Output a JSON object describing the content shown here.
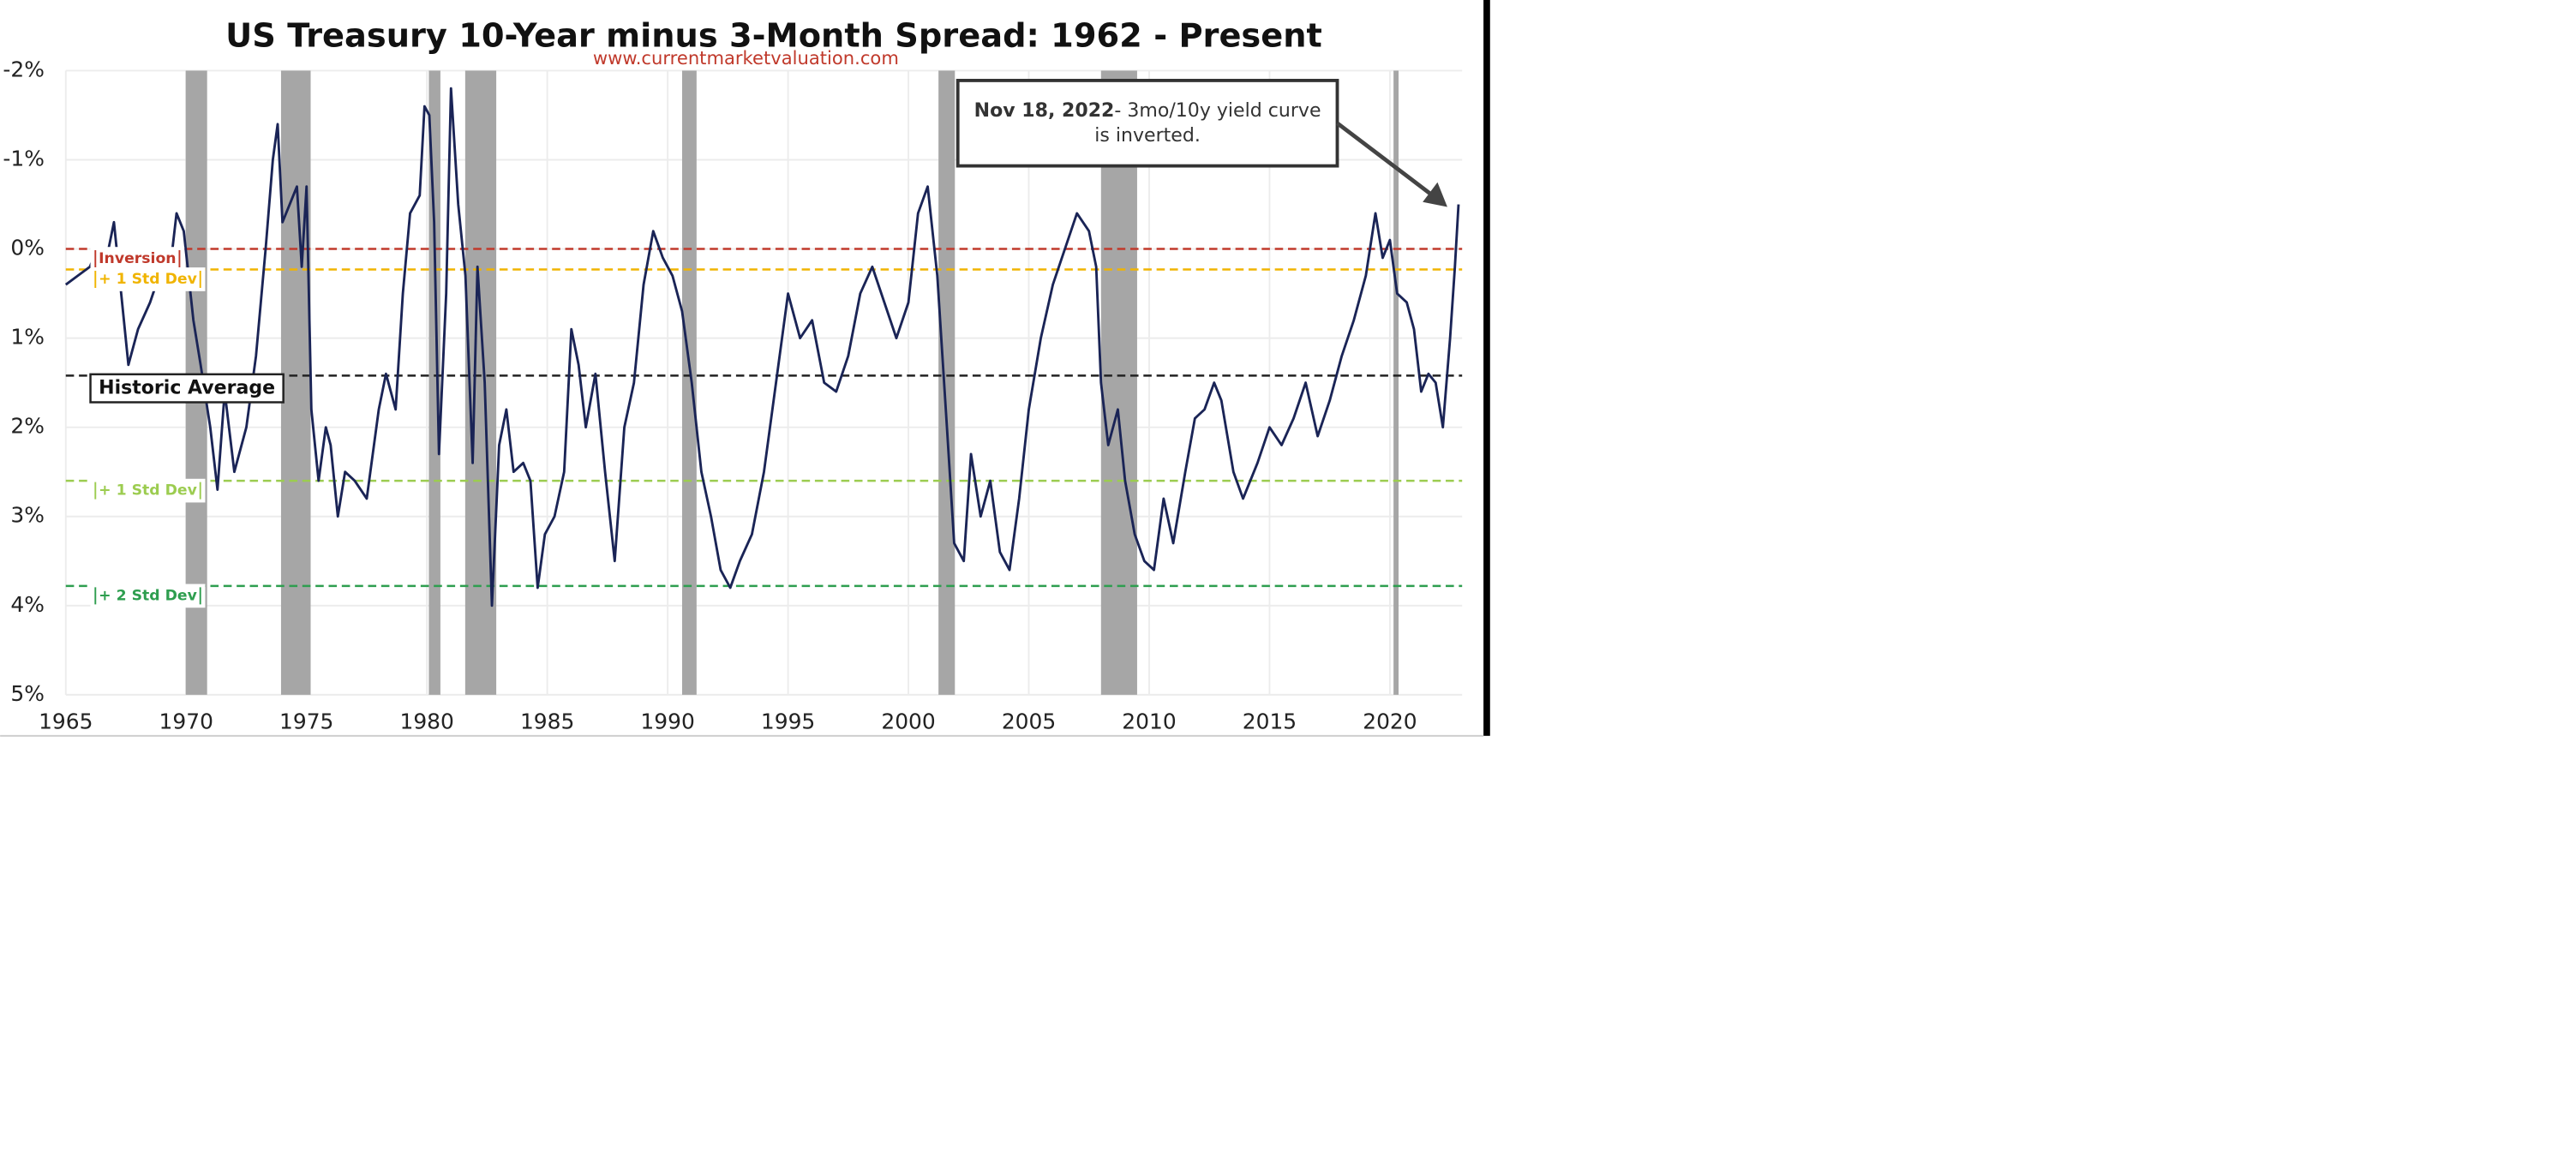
{
  "chart_data": {
    "type": "line",
    "title": "US Treasury 10-Year minus 3-Month Spread: 1962 - Present",
    "subtitle": "www.currentmarketvaluation.com",
    "inverted_y": true,
    "xlim": [
      1965,
      2023
    ],
    "xticks": [
      1965,
      1970,
      1975,
      1980,
      1985,
      1990,
      1995,
      2000,
      2005,
      2010,
      2015,
      2020
    ],
    "ylim": [
      -2,
      5
    ],
    "yticks": [
      {
        "value": -2,
        "label": "-2%"
      },
      {
        "value": -1,
        "label": "-1%"
      },
      {
        "value": 0,
        "label": "0%"
      },
      {
        "value": 1,
        "label": "1%"
      },
      {
        "value": 2,
        "label": "2%"
      },
      {
        "value": 3,
        "label": "3%"
      },
      {
        "value": 4,
        "label": "4%"
      },
      {
        "value": 5,
        "label": "5%"
      }
    ],
    "grid": true,
    "recession_color": "#a6a6a6",
    "recessions": [
      [
        1969.98,
        1970.87
      ],
      [
        1973.94,
        1975.17
      ],
      [
        1980.08,
        1980.56
      ],
      [
        1981.59,
        1982.88
      ],
      [
        1990.6,
        1991.2
      ],
      [
        2001.25,
        2001.93
      ],
      [
        2008.0,
        2009.5
      ],
      [
        2020.15,
        2020.36
      ]
    ],
    "reference_lines": [
      {
        "label": "Inversion",
        "value": 0,
        "color": "#c0392b"
      },
      {
        "label": "+ 1 Std Dev",
        "value": 0.23,
        "color": "#f0b400"
      },
      {
        "label": "Historic Average",
        "value": 1.42,
        "color": "#222222"
      },
      {
        "label": "+ 1 Std Dev",
        "value": 2.6,
        "color": "#9ccc50"
      },
      {
        "label": "+ 2 Std Dev",
        "value": 3.78,
        "color": "#2e9e4f"
      }
    ],
    "annotation": {
      "date": "Nov 18, 2022",
      "text": "- 3mo/10y yield curve is inverted."
    },
    "series": [
      {
        "color": "#1a2456",
        "x": [
          1965.0,
          1965.5,
          1966.0,
          1966.3,
          1966.7,
          1967.0,
          1967.3,
          1967.6,
          1968.0,
          1968.5,
          1969.0,
          1969.3,
          1969.6,
          1969.9,
          1970.3,
          1970.6,
          1971.0,
          1971.3,
          1971.6,
          1972.0,
          1972.5,
          1972.9,
          1973.3,
          1973.6,
          1973.8,
          1974.0,
          1974.3,
          1974.6,
          1974.8,
          1975.0,
          1975.2,
          1975.5,
          1975.8,
          1976.0,
          1976.3,
          1976.6,
          1977.0,
          1977.5,
          1978.0,
          1978.3,
          1978.7,
          1979.0,
          1979.3,
          1979.7,
          1979.9,
          1980.1,
          1980.3,
          1980.5,
          1980.8,
          1981.0,
          1981.3,
          1981.6,
          1981.9,
          1982.1,
          1982.4,
          1982.7,
          1983.0,
          1983.3,
          1983.6,
          1984.0,
          1984.3,
          1984.6,
          1984.9,
          1985.3,
          1985.7,
          1986.0,
          1986.3,
          1986.6,
          1987.0,
          1987.4,
          1987.8,
          1988.2,
          1988.6,
          1989.0,
          1989.4,
          1989.8,
          1990.2,
          1990.6,
          1991.0,
          1991.4,
          1991.8,
          1992.2,
          1992.6,
          1993.0,
          1993.5,
          1994.0,
          1994.5,
          1995.0,
          1995.5,
          1996.0,
          1996.5,
          1997.0,
          1997.5,
          1998.0,
          1998.5,
          1999.0,
          1999.5,
          2000.0,
          2000.4,
          2000.8,
          2001.2,
          2001.6,
          2001.9,
          2002.3,
          2002.6,
          2003.0,
          2003.4,
          2003.8,
          2004.2,
          2004.6,
          2005.0,
          2005.5,
          2006.0,
          2006.5,
          2007.0,
          2007.5,
          2007.8,
          2008.0,
          2008.3,
          2008.7,
          2009.0,
          2009.4,
          2009.8,
          2010.2,
          2010.6,
          2011.0,
          2011.5,
          2011.9,
          2012.3,
          2012.7,
          2013.0,
          2013.5,
          2013.9,
          2014.5,
          2015.0,
          2015.5,
          2016.0,
          2016.5,
          2017.0,
          2017.5,
          2018.0,
          2018.5,
          2019.0,
          2019.4,
          2019.7,
          2020.0,
          2020.3,
          2020.7,
          2021.0,
          2021.3,
          2021.6,
          2021.9,
          2022.2,
          2022.5,
          2022.7,
          2022.85
        ],
        "values": [
          0.4,
          0.3,
          0.2,
          0.0,
          0.1,
          -0.3,
          0.5,
          1.3,
          0.9,
          0.6,
          0.2,
          0.3,
          -0.4,
          -0.2,
          0.8,
          1.3,
          2.0,
          2.7,
          1.6,
          2.5,
          2.0,
          1.2,
          0.0,
          -1.0,
          -1.4,
          -0.3,
          -0.5,
          -0.7,
          0.2,
          -0.7,
          1.8,
          2.6,
          2.0,
          2.2,
          3.0,
          2.5,
          2.6,
          2.8,
          1.8,
          1.4,
          1.8,
          0.5,
          -0.4,
          -0.6,
          -1.6,
          -1.5,
          -0.3,
          2.3,
          0.5,
          -1.8,
          -0.5,
          0.3,
          2.4,
          0.2,
          1.5,
          4.0,
          2.2,
          1.8,
          2.5,
          2.4,
          2.6,
          3.8,
          3.2,
          3.0,
          2.5,
          0.9,
          1.3,
          2.0,
          1.4,
          2.5,
          3.5,
          2.0,
          1.5,
          0.4,
          -0.2,
          0.1,
          0.3,
          0.7,
          1.5,
          2.5,
          3.0,
          3.6,
          3.8,
          3.5,
          3.2,
          2.5,
          1.5,
          0.5,
          1.0,
          0.8,
          1.5,
          1.6,
          1.2,
          0.5,
          0.2,
          0.6,
          1.0,
          0.6,
          -0.4,
          -0.7,
          0.3,
          2.0,
          3.3,
          3.5,
          2.3,
          3.0,
          2.6,
          3.4,
          3.6,
          2.8,
          1.8,
          1.0,
          0.4,
          0.0,
          -0.4,
          -0.2,
          0.2,
          1.5,
          2.2,
          1.8,
          2.6,
          3.2,
          3.5,
          3.6,
          2.8,
          3.3,
          2.5,
          1.9,
          1.8,
          1.5,
          1.7,
          2.5,
          2.8,
          2.4,
          2.0,
          2.2,
          1.9,
          1.5,
          2.1,
          1.7,
          1.2,
          0.8,
          0.3,
          -0.4,
          0.1,
          -0.1,
          0.5,
          0.6,
          0.9,
          1.6,
          1.4,
          1.5,
          2.0,
          1.0,
          0.2,
          -0.5
        ]
      }
    ]
  }
}
